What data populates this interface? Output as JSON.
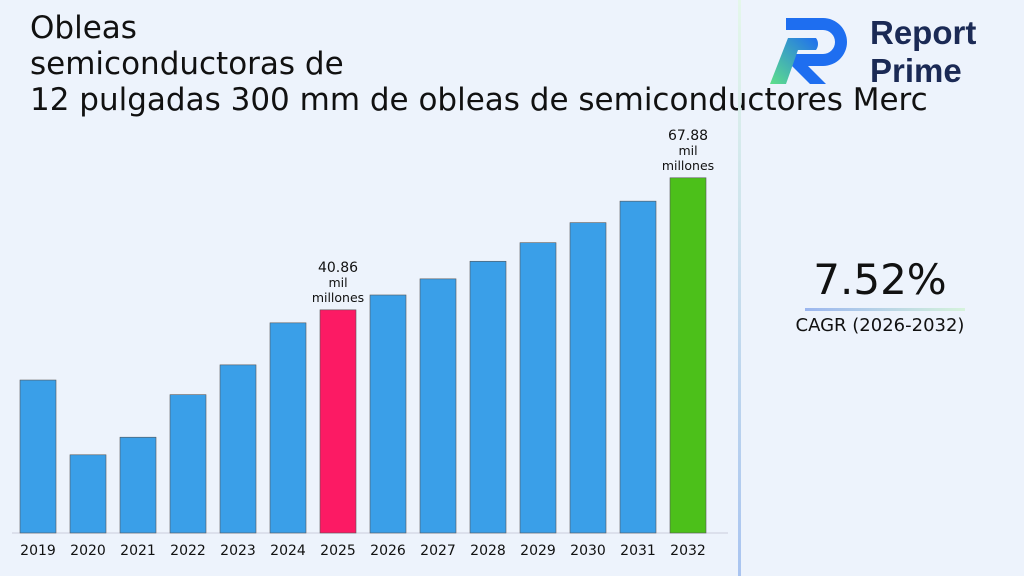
{
  "title_lines": [
    "Obleas",
    "semiconductoras de",
    "12 pulgadas 300 mm de obleas de semiconductores Merc"
  ],
  "brand": {
    "line1": "Report",
    "line2": "Prime"
  },
  "cagr": {
    "value": "7.52%",
    "label": "CAGR (2026-2032)"
  },
  "colors": {
    "bar": "#3a9fe8",
    "highlight_start": "#fc1a64",
    "highlight_end": "#4cc01a"
  },
  "chart_data": {
    "type": "bar",
    "categories": [
      "2019",
      "2020",
      "2021",
      "2022",
      "2023",
      "2024",
      "2025",
      "2026",
      "2027",
      "2028",
      "2029",
      "2030",
      "2031",
      "2032"
    ],
    "values": [
      26.5,
      11.2,
      14.8,
      23.5,
      29.6,
      38.2,
      40.86,
      43.9,
      47.2,
      50.8,
      54.6,
      58.7,
      63.1,
      67.88
    ],
    "annotations": [
      {
        "category": "2025",
        "lines": [
          "40.86",
          "mil",
          "millones"
        ]
      },
      {
        "category": "2032",
        "lines": [
          "67.88",
          "mil",
          "millones"
        ]
      }
    ],
    "ylim": [
      -4.8,
      75
    ],
    "grid": false,
    "xlabel": "",
    "ylabel": ""
  }
}
